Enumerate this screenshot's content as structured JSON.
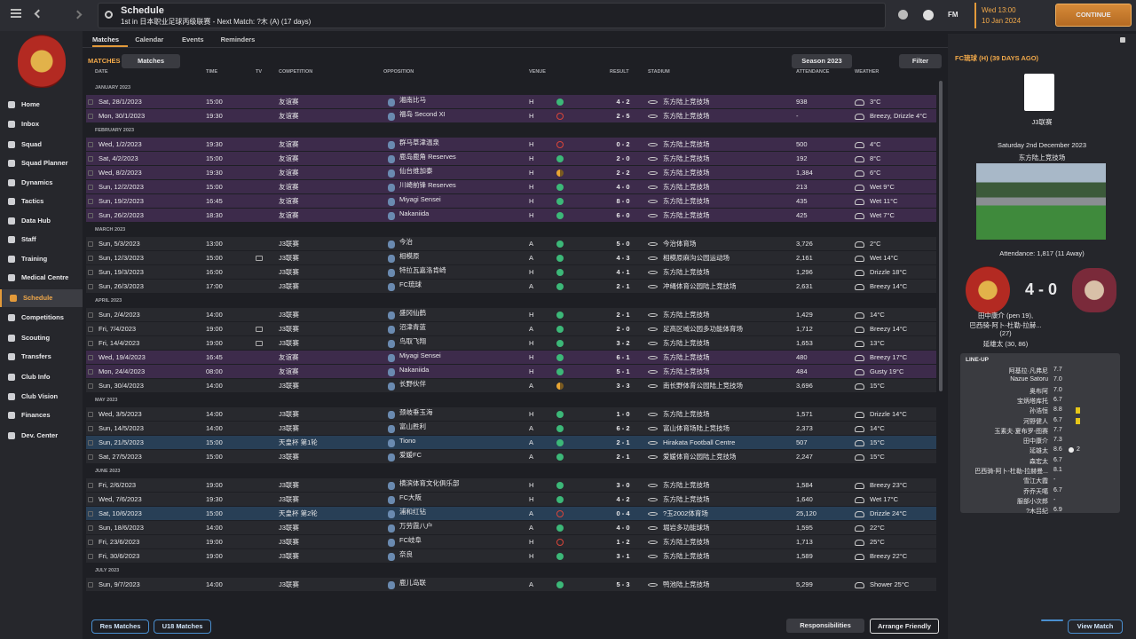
{
  "topbar": {
    "title": "Schedule",
    "subtitle": "1st in 日本职业足球丙级联赛 - Next Match: ?木 (A) (17 days)",
    "fm": "FM",
    "time": "Wed 13:00",
    "date": "10 Jan 2024",
    "continue": "CONTINUE"
  },
  "sidebar": [
    [
      "Home",
      "Inbox"
    ],
    [
      "Squad",
      "Squad Planner",
      "Dynamics",
      "Tactics",
      "Data Hub",
      "Staff",
      "Training",
      "Medical Centre"
    ],
    [
      "Schedule",
      "Competitions"
    ],
    [
      "Scouting",
      "Transfers"
    ],
    [
      "Club Info",
      "Club Vision",
      "Finances"
    ],
    [
      "Dev. Center"
    ]
  ],
  "tabs": [
    "Matches",
    "Calendar",
    "Events",
    "Reminders"
  ],
  "toolbar": {
    "label": "MATCHES",
    "view": "Matches",
    "season": "Season 2023",
    "filter": "Filter"
  },
  "table": {
    "columns": [
      "DATE",
      "TIME",
      "TV",
      "COMPETITION",
      "OPPOSITION",
      "VENUE",
      "RESULT",
      "STADIUM",
      "ATTENDANCE",
      "WEATHER"
    ],
    "groups": [
      {
        "month": "JANUARY 2023",
        "matches": [
          {
            "date": "Sat, 28/1/2023",
            "time": "15:00",
            "competition": "友谊赛",
            "opposition": "湘南比马",
            "venue": "H",
            "outcome": "win",
            "result": "4 - 2",
            "stadium": "东方陆上竞技场",
            "attendance": "938",
            "weather": "3°C",
            "highlight": "#3d2b4b"
          },
          {
            "date": "Mon, 30/1/2023",
            "time": "19:30",
            "competition": "友谊赛",
            "opposition": "福岛 Second XI",
            "venue": "H",
            "outcome": "loss",
            "result": "2 - 5",
            "stadium": "东方陆上竞技场",
            "attendance": "-",
            "weather": "Breezy, Drizzle 4°C",
            "highlight": "#3d2b4b"
          }
        ]
      },
      {
        "month": "FEBRUARY 2023",
        "matches": [
          {
            "date": "Wed, 1/2/2023",
            "time": "19:30",
            "competition": "友谊赛",
            "opposition": "群马草津温泉",
            "venue": "H",
            "outcome": "loss",
            "result": "0 - 2",
            "stadium": "东方陆上竞技场",
            "attendance": "500",
            "weather": "4°C",
            "highlight": "#3d2b4b"
          },
          {
            "date": "Sat, 4/2/2023",
            "time": "15:00",
            "competition": "友谊赛",
            "opposition": "鹿岛鹿角 Reserves",
            "venue": "H",
            "outcome": "win",
            "result": "2 - 0",
            "stadium": "东方陆上竞技场",
            "attendance": "192",
            "weather": "8°C",
            "highlight": "#3d2b4b"
          },
          {
            "date": "Wed, 8/2/2023",
            "time": "19:30",
            "competition": "友谊赛",
            "opposition": "仙台维加泰",
            "venue": "H",
            "outcome": "draw",
            "result": "2 - 2",
            "stadium": "东方陆上竞技场",
            "attendance": "1,384",
            "weather": "6°C",
            "highlight": "#3d2b4b"
          },
          {
            "date": "Sun, 12/2/2023",
            "time": "15:00",
            "competition": "友谊赛",
            "opposition": "川崎前锋 Reserves",
            "venue": "H",
            "outcome": "win",
            "result": "4 - 0",
            "stadium": "东方陆上竞技场",
            "attendance": "213",
            "weather": "Wet 9°C",
            "highlight": "#3d2b4b"
          },
          {
            "date": "Sun, 19/2/2023",
            "time": "16:45",
            "competition": "友谊赛",
            "opposition": "Miyagi Sensei",
            "venue": "H",
            "outcome": "win",
            "result": "8 - 0",
            "stadium": "东方陆上竞技场",
            "attendance": "435",
            "weather": "Wet 11°C",
            "highlight": "#3d2b4b"
          },
          {
            "date": "Sun, 26/2/2023",
            "time": "18:30",
            "competition": "友谊赛",
            "opposition": "Nakaniida",
            "venue": "H",
            "outcome": "win",
            "result": "6 - 0",
            "stadium": "东方陆上竞技场",
            "attendance": "425",
            "weather": "Wet 7°C",
            "highlight": "#3d2b4b"
          }
        ]
      },
      {
        "month": "MARCH 2023",
        "matches": [
          {
            "date": "Sun, 5/3/2023",
            "time": "13:00",
            "competition": "J3联赛",
            "opposition": "今治",
            "venue": "A",
            "outcome": "win",
            "result": "5 - 0",
            "stadium": "今治体育场",
            "attendance": "3,726",
            "weather": "2°C"
          },
          {
            "date": "Sun, 12/3/2023",
            "time": "15:00",
            "tv": true,
            "competition": "J3联赛",
            "opposition": "相模原",
            "venue": "A",
            "outcome": "win",
            "result": "4 - 3",
            "stadium": "相模原麻沟公园运动场",
            "attendance": "2,161",
            "weather": "Wet 14°C"
          },
          {
            "date": "Sun, 19/3/2023",
            "time": "16:00",
            "competition": "J3联赛",
            "opposition": "特拉瓦嘉洛肯崎",
            "venue": "H",
            "outcome": "win",
            "result": "4 - 1",
            "stadium": "东方陆上竞技场",
            "attendance": "1,296",
            "weather": "Drizzle 18°C"
          },
          {
            "date": "Sun, 26/3/2023",
            "time": "17:00",
            "competition": "J3联赛",
            "opposition": "FC琉球",
            "venue": "A",
            "outcome": "win",
            "result": "2 - 1",
            "stadium": "冲绳体育公园陆上竞技场",
            "attendance": "2,631",
            "weather": "Breezy 14°C"
          }
        ]
      },
      {
        "month": "APRIL 2023",
        "matches": [
          {
            "date": "Sun, 2/4/2023",
            "time": "14:00",
            "competition": "J3联赛",
            "opposition": "盛冈仙鹤",
            "venue": "H",
            "outcome": "win",
            "result": "2 - 1",
            "stadium": "东方陆上竞技场",
            "attendance": "1,429",
            "weather": "14°C"
          },
          {
            "date": "Fri, 7/4/2023",
            "time": "19:00",
            "tv": true,
            "competition": "J3联赛",
            "opposition": "沼津青蓝",
            "venue": "A",
            "outcome": "win",
            "result": "2 - 0",
            "stadium": "足高区域公园多功能体育场",
            "attendance": "1,712",
            "weather": "Breezy 14°C"
          },
          {
            "date": "Fri, 14/4/2023",
            "time": "19:00",
            "tv": true,
            "competition": "J3联赛",
            "opposition": "鸟取飞翔",
            "venue": "H",
            "outcome": "win",
            "result": "3 - 2",
            "stadium": "东方陆上竞技场",
            "attendance": "1,653",
            "weather": "13°C"
          },
          {
            "date": "Wed, 19/4/2023",
            "time": "16:45",
            "competition": "友谊赛",
            "opposition": "Miyagi Sensei",
            "venue": "H",
            "outcome": "win",
            "result": "6 - 1",
            "stadium": "东方陆上竞技场",
            "attendance": "480",
            "weather": "Breezy 17°C",
            "highlight": "#3d2b4b"
          },
          {
            "date": "Mon, 24/4/2023",
            "time": "08:00",
            "competition": "友谊赛",
            "opposition": "Nakaniida",
            "venue": "H",
            "outcome": "win",
            "result": "5 - 1",
            "stadium": "东方陆上竞技场",
            "attendance": "484",
            "weather": "Gusty 19°C",
            "highlight": "#3d2b4b"
          },
          {
            "date": "Sun, 30/4/2023",
            "time": "14:00",
            "competition": "J3联赛",
            "opposition": "长野伙伴",
            "venue": "A",
            "outcome": "draw",
            "result": "3 - 3",
            "stadium": "南长野体育公园陆上竞技场",
            "attendance": "3,696",
            "weather": "15°C"
          }
        ]
      },
      {
        "month": "MAY 2023",
        "matches": [
          {
            "date": "Wed, 3/5/2023",
            "time": "14:00",
            "competition": "J3联赛",
            "opposition": "颈岐垂玉海",
            "venue": "H",
            "outcome": "win",
            "result": "1 - 0",
            "stadium": "东方陆上竞技场",
            "attendance": "1,571",
            "weather": "Drizzle 14°C"
          },
          {
            "date": "Sun, 14/5/2023",
            "time": "14:00",
            "competition": "J3联赛",
            "opposition": "富山胜利",
            "venue": "A",
            "outcome": "win",
            "result": "6 - 2",
            "stadium": "富山体育场陆上竞技场",
            "attendance": "2,373",
            "weather": "14°C"
          },
          {
            "date": "Sun, 21/5/2023",
            "time": "15:00",
            "competition": "天皇杯 第1轮",
            "opposition": "Tiono",
            "venue": "A",
            "outcome": "win",
            "result": "2 - 1",
            "stadium": "Hirakata Football Centre",
            "attendance": "507",
            "weather": "15°C",
            "highlight": "#283f56"
          },
          {
            "date": "Sat, 27/5/2023",
            "time": "15:00",
            "competition": "J3联赛",
            "opposition": "爱媛FC",
            "venue": "A",
            "outcome": "win",
            "result": "2 - 1",
            "stadium": "爱媛体育公园陆上竞技场",
            "attendance": "2,247",
            "weather": "15°C"
          }
        ]
      },
      {
        "month": "JUNE 2023",
        "matches": [
          {
            "date": "Fri, 2/6/2023",
            "time": "19:00",
            "competition": "J3联赛",
            "opposition": "横滨体育文化俱乐部",
            "venue": "H",
            "outcome": "win",
            "result": "3 - 0",
            "stadium": "东方陆上竞技场",
            "attendance": "1,584",
            "weather": "Breezy 23°C"
          },
          {
            "date": "Wed, 7/6/2023",
            "time": "19:30",
            "competition": "J3联赛",
            "opposition": "FC大阪",
            "venue": "H",
            "outcome": "win",
            "result": "4 - 2",
            "stadium": "东方陆上竞技场",
            "attendance": "1,640",
            "weather": "Wet 17°C"
          },
          {
            "date": "Sat, 10/6/2023",
            "time": "15:00",
            "competition": "天皇杯 第2轮",
            "opposition": "浦和红钻",
            "venue": "A",
            "outcome": "loss",
            "result": "0 - 4",
            "stadium": "?玉2002体育场",
            "attendance": "25,120",
            "weather": "Drizzle 24°C",
            "highlight": "#283f56"
          },
          {
            "date": "Sun, 18/6/2023",
            "time": "14:00",
            "competition": "J3联赛",
            "opposition": "万劳霞八户",
            "venue": "A",
            "outcome": "win",
            "result": "4 - 0",
            "stadium": "堀岩多功能球场",
            "attendance": "1,595",
            "weather": "22°C"
          },
          {
            "date": "Fri, 23/6/2023",
            "time": "19:00",
            "competition": "J3联赛",
            "opposition": "FC岐阜",
            "venue": "H",
            "outcome": "loss",
            "result": "1 - 2",
            "stadium": "东方陆上竞技场",
            "attendance": "1,713",
            "weather": "25°C"
          },
          {
            "date": "Fri, 30/6/2023",
            "time": "19:00",
            "competition": "J3联赛",
            "opposition": "奈良",
            "venue": "H",
            "outcome": "win",
            "result": "3 - 1",
            "stadium": "东方陆上竞技场",
            "attendance": "1,589",
            "weather": "Breezy 22°C"
          }
        ]
      },
      {
        "month": "JULY 2023",
        "matches": [
          {
            "date": "Sun, 9/7/2023",
            "time": "14:00",
            "competition": "J3联赛",
            "opposition": "鹿儿岛联",
            "venue": "A",
            "outcome": "win",
            "result": "5 - 3",
            "stadium": "鸭池陆上竞技场",
            "attendance": "5,299",
            "weather": "Shower 25°C"
          }
        ]
      }
    ]
  },
  "detail": {
    "heading": "FC琉球 (H) (39 DAYS AGO)",
    "competition": "J3联赛",
    "date": "Saturday 2nd December 2023",
    "stadium": "东方陆上竞技场",
    "attendance": "Attendance: 1,817 (11 Away)",
    "score": "4 - 0",
    "scorers": [
      "田中康介 (pen 19),",
      "巴西骑-阿卜-杜勒-拉赫...",
      "(27)",
      "延雄太 (30, 86)"
    ],
    "lineup_title": "LINE-UP",
    "lineup": [
      {
        "name": "阿基拉·凡弗尼",
        "rating": "7.7"
      },
      {
        "name": "Nazue Satoru",
        "rating": "7.0"
      },
      {
        "name": "奥布阿",
        "rating": "7.0"
      },
      {
        "name": "宝炳塔库托",
        "rating": "6.7"
      },
      {
        "name": "孙浩恒",
        "rating": "8.8",
        "card": "#e6c619"
      },
      {
        "name": "河野健人",
        "rating": "6.7",
        "card": "#e6c619"
      },
      {
        "name": "玉素夫·夏布罗-图赛",
        "rating": "7.7"
      },
      {
        "name": "田中康介",
        "rating": "7.3"
      },
      {
        "name": "延雄太",
        "rating": "8.6",
        "goals": "2"
      },
      {
        "name": "森宏太",
        "rating": "6.7"
      },
      {
        "name": "巴西骑-阿卜-杜勒-拉赫曼...",
        "rating": "8.1"
      },
      {
        "name": "雪江大霞",
        "rating": "-"
      },
      {
        "name": "乔乔天噶",
        "rating": "6.7"
      },
      {
        "name": "服部小次郎",
        "rating": "-"
      },
      {
        "name": "?木吕纪",
        "rating": "6.9"
      }
    ]
  },
  "footer": {
    "res": "Res Matches",
    "u18": "U18 Matches",
    "responsibilities": "Responsibilities",
    "arrange": "Arrange Friendly",
    "view": "View Match"
  }
}
